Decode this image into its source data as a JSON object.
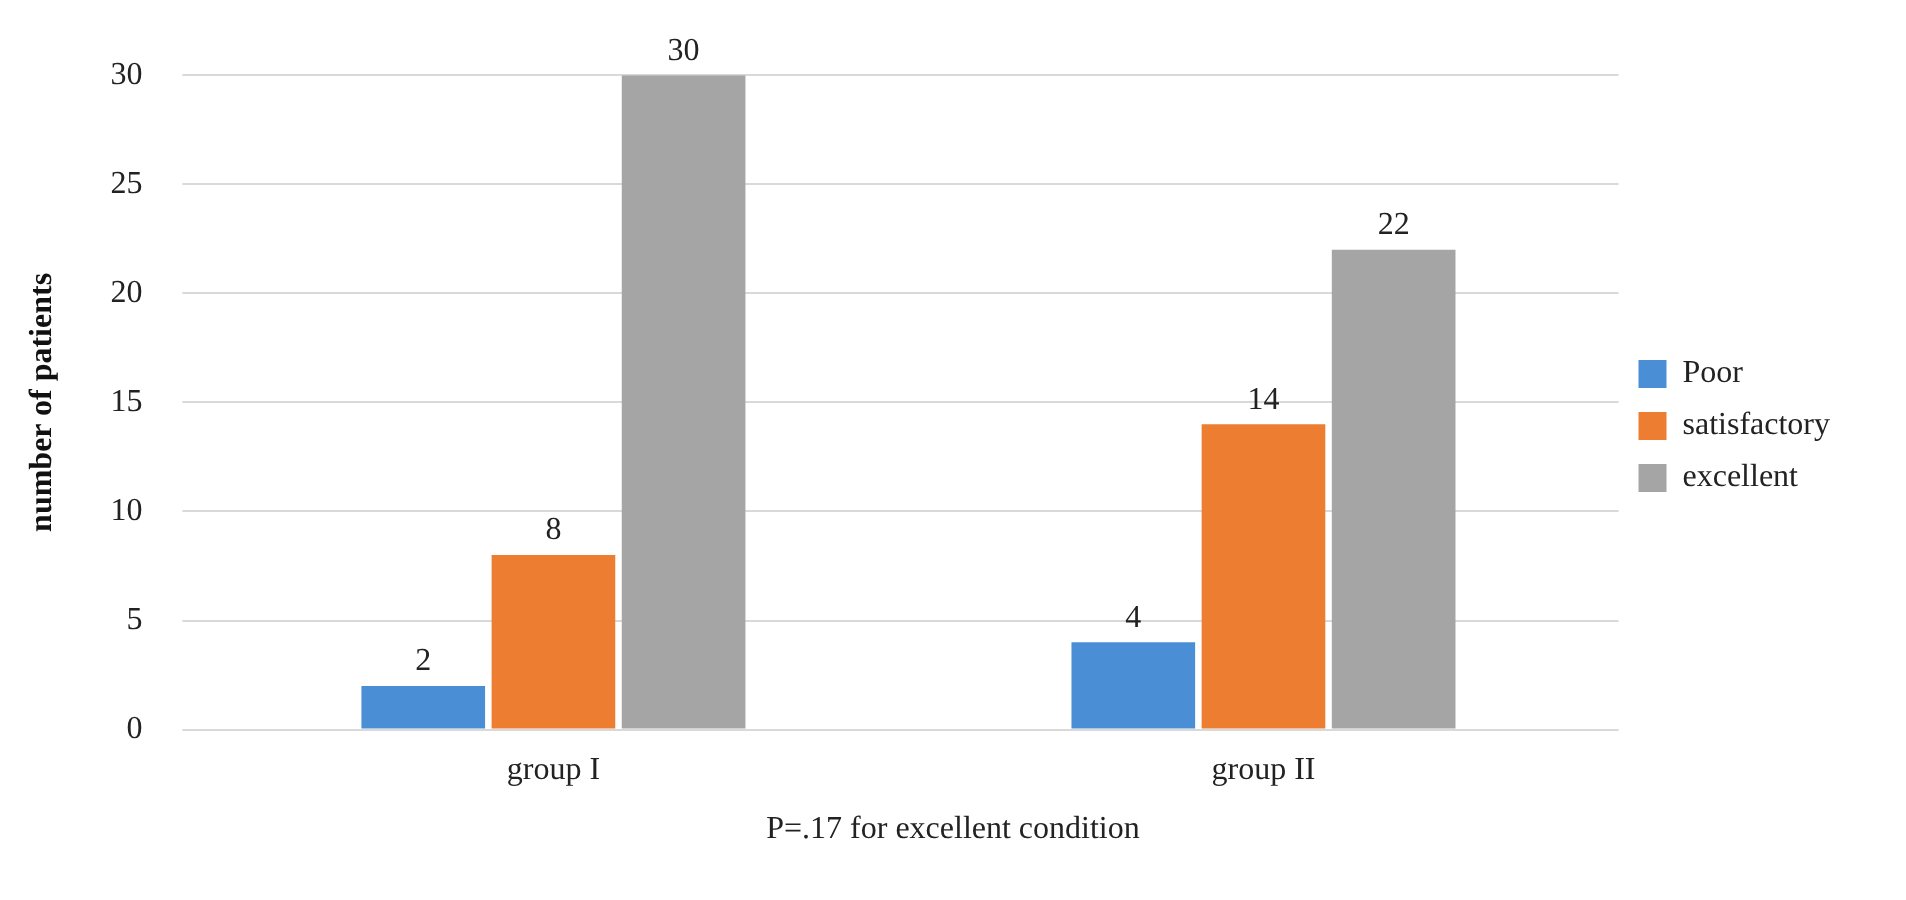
{
  "chart_data": {
    "type": "bar",
    "ylabel": "number of patients",
    "categories": [
      "group I",
      "group II"
    ],
    "series": [
      {
        "name": "Poor",
        "color": "#4a8fd6",
        "values": [
          2,
          4
        ]
      },
      {
        "name": "satisfactory",
        "color": "#ed7d31",
        "values": [
          8,
          14
        ]
      },
      {
        "name": "excellent",
        "color": "#a5a5a5",
        "values": [
          30,
          22
        ]
      }
    ],
    "ylim": [
      0,
      30
    ],
    "yticks": [
      0,
      5,
      10,
      15,
      20,
      25,
      30
    ],
    "grid": "y",
    "legend": "right",
    "data_labels": true,
    "annotations": [
      "P=.17 for excellent condition"
    ]
  }
}
